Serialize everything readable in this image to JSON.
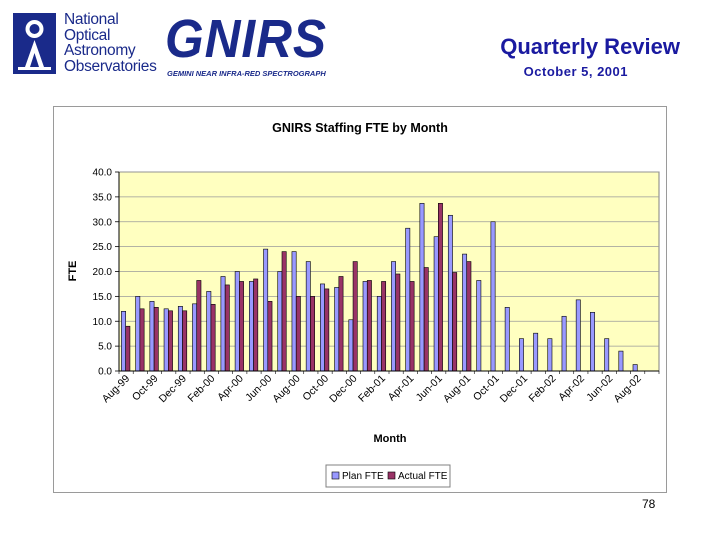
{
  "header": {
    "org_lines": [
      "National",
      "Optical",
      "Astronomy",
      "Observatories"
    ],
    "instrument": "GNIRS",
    "instrument_subtitle": "GEMINI NEAR INFRA-RED SPECTROGRAPH",
    "title": "Quarterly Review",
    "date": "October 5, 2001"
  },
  "page_number": "78",
  "colors": {
    "plot_background": "#ffffc0",
    "plan": "#9999ff",
    "actual": "#993366",
    "title_blue": "#1a1aa0",
    "logo_blue": "#1a2a8a"
  },
  "chart_data": {
    "type": "bar",
    "title": "GNIRS Staffing FTE by Month",
    "xlabel": "Month",
    "ylabel": "FTE",
    "ylim": [
      0,
      40
    ],
    "yticks": [
      "0.0",
      "5.0",
      "10.0",
      "15.0",
      "20.0",
      "25.0",
      "30.0",
      "35.0",
      "40.0"
    ],
    "grid": true,
    "legend": "bottom-center",
    "categories": [
      "Aug-99",
      "Sep-99",
      "Oct-99",
      "Nov-99",
      "Dec-99",
      "Jan-00",
      "Feb-00",
      "Mar-00",
      "Apr-00",
      "May-00",
      "Jun-00",
      "Jul-00",
      "Aug-00",
      "Sep-00",
      "Oct-00",
      "Nov-00",
      "Dec-00",
      "Jan-01",
      "Feb-01",
      "Mar-01",
      "Apr-01",
      "May-01",
      "Jun-01",
      "Jul-01",
      "Aug-01",
      "Sep-01",
      "Oct-01",
      "Nov-01",
      "Dec-01",
      "Jan-02",
      "Feb-02",
      "Mar-02",
      "Apr-02",
      "May-02",
      "Jun-02",
      "Jul-02",
      "Aug-02",
      "Sep-02"
    ],
    "tick_labels": [
      "Aug-99",
      "Oct-99",
      "Dec-99",
      "Feb-00",
      "Apr-00",
      "Jun-00",
      "Aug-00",
      "Oct-00",
      "Dec-00",
      "Feb-01",
      "Apr-01",
      "Jun-01",
      "Aug-01",
      "Oct-01",
      "Dec-01",
      "Feb-02",
      "Apr-02",
      "Jun-02",
      "Aug-02"
    ],
    "series": [
      {
        "name": "Plan FTE",
        "values": [
          12.0,
          15.0,
          14.0,
          12.5,
          13.0,
          13.5,
          16.0,
          19.0,
          20.0,
          18.0,
          24.5,
          20.0,
          24.0,
          22.0,
          17.5,
          16.8,
          10.3,
          18.0,
          15.0,
          22.0,
          28.7,
          33.7,
          27.0,
          31.3,
          23.5,
          18.2,
          30.0,
          12.8,
          6.5,
          7.6,
          6.5,
          11.0,
          14.3,
          11.8,
          6.5,
          4.0,
          1.3,
          null
        ]
      },
      {
        "name": "Actual FTE",
        "values": [
          9.0,
          12.5,
          12.8,
          12.1,
          12.1,
          18.2,
          13.4,
          17.3,
          18.0,
          18.5,
          14.0,
          24.0,
          15.0,
          15.0,
          16.5,
          19.0,
          22.0,
          18.2,
          18.0,
          19.5,
          18.0,
          20.8,
          33.7,
          19.8,
          22.0,
          null,
          null,
          null,
          null,
          null,
          null,
          null,
          null,
          null,
          null,
          null,
          null,
          null
        ]
      }
    ]
  }
}
